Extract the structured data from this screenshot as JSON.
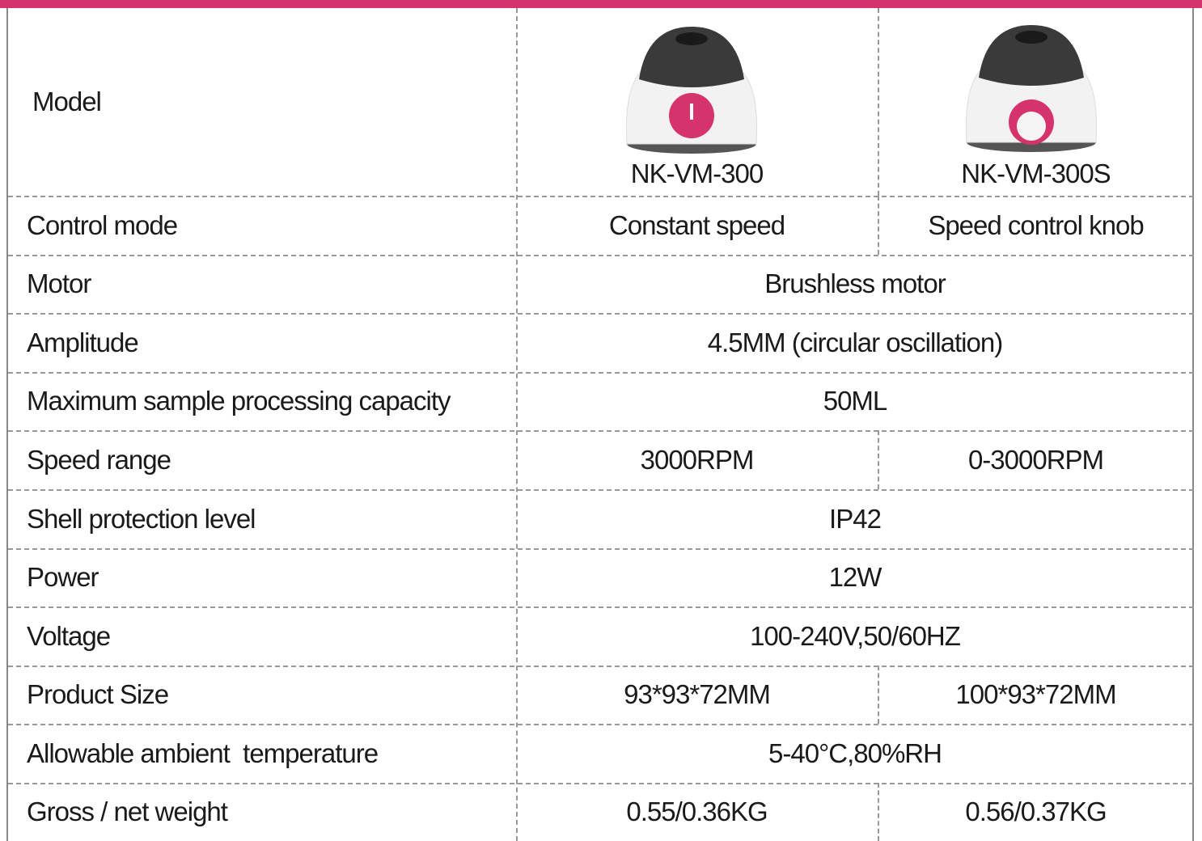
{
  "table": {
    "rows": [
      {
        "label": "Model",
        "values": [
          "NK-VM-300",
          "NK-VM-300S"
        ]
      },
      {
        "label": "Control mode",
        "values": [
          "Constant speed",
          "Speed control knob"
        ]
      },
      {
        "label": "Motor",
        "values": [
          "Brushless motor"
        ]
      },
      {
        "label": "Amplitude",
        "values": [
          "4.5MM (circular oscillation)"
        ]
      },
      {
        "label": "Maximum sample processing capacity",
        "values": [
          "50ML"
        ]
      },
      {
        "label": "Speed range",
        "values": [
          "3000RPM",
          "0-3000RPM"
        ]
      },
      {
        "label": "Shell protection level",
        "values": [
          "IP42"
        ]
      },
      {
        "label": "Power",
        "values": [
          "12W"
        ]
      },
      {
        "label": "Voltage",
        "values": [
          "100-240V,50/60HZ"
        ]
      },
      {
        "label": "Product Size",
        "values": [
          "93*93*72MM",
          "100*93*72MM"
        ]
      },
      {
        "label": "Allowable ambient  temperature",
        "values": [
          "5-40°C,80%RH"
        ]
      },
      {
        "label": "Gross / net weight",
        "values": [
          "0.55/0.36KG",
          "0.56/0.37KG"
        ]
      }
    ]
  }
}
